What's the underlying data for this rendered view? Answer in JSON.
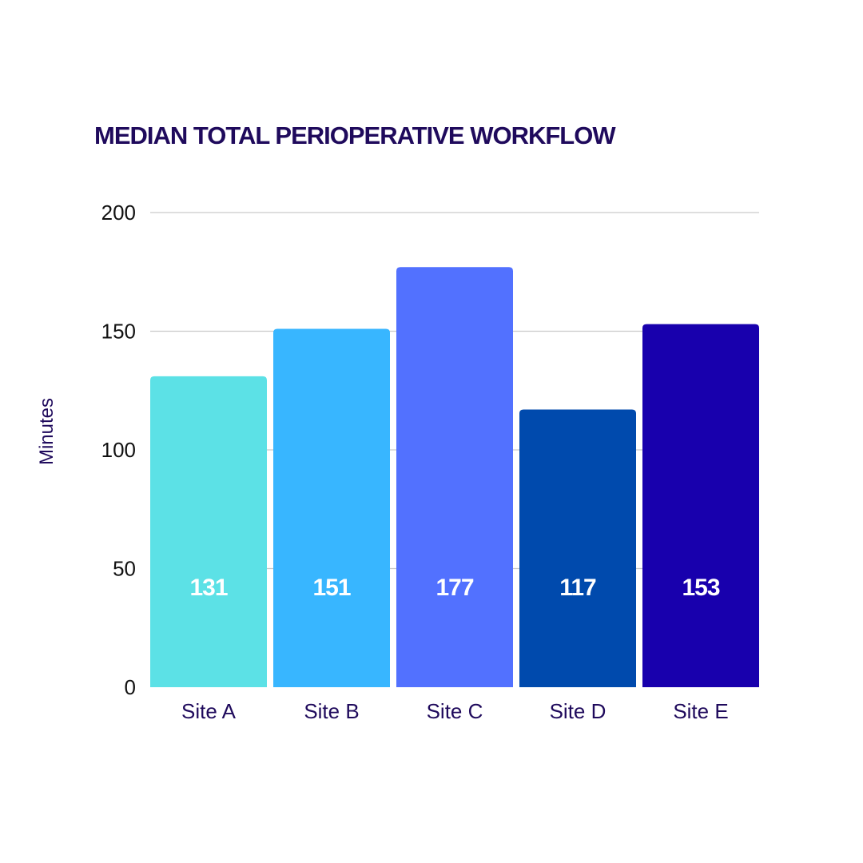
{
  "chart_data": {
    "type": "bar",
    "title": "MEDIAN TOTAL PERIOPERATIVE WORKFLOW",
    "xlabel": "",
    "ylabel": "Minutes",
    "categories": [
      "Site A",
      "Site B",
      "Site C",
      "Site D",
      "Site E"
    ],
    "values": [
      131,
      151,
      177,
      117,
      153
    ],
    "data_labels": [
      "131",
      "151",
      "177",
      "117",
      "153"
    ],
    "ylim": [
      0,
      200
    ],
    "yticks": [
      0,
      50,
      100,
      150,
      200
    ],
    "grid": true,
    "legend": "none",
    "bar_colors": [
      "#5ce1e6",
      "#38b6ff",
      "#5271ff",
      "#004aad",
      "#1800ad"
    ],
    "title_color": "#1f0a5c",
    "label_color": "#1f0a5c"
  }
}
